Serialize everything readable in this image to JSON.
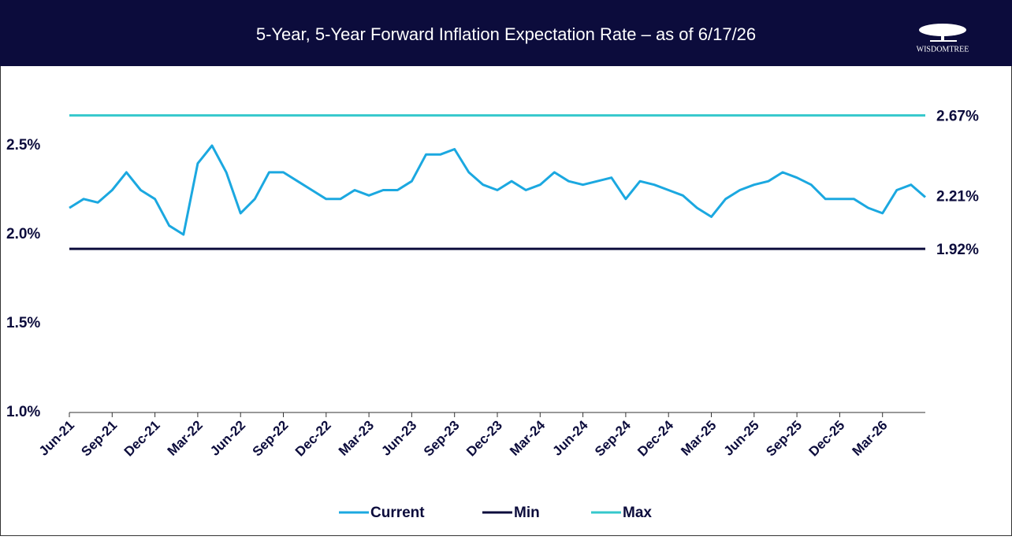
{
  "logo": "WISDOMTREE",
  "chart_data": {
    "type": "line",
    "title": "5-Year, 5-Year Forward Inflation Expectation Rate – as of 6/17/26",
    "x": [
      "Jun-21",
      "Jul-21",
      "Aug-21",
      "Sep-21",
      "Oct-21",
      "Nov-21",
      "Dec-21",
      "Jan-22",
      "Feb-22",
      "Mar-22",
      "Apr-22",
      "May-22",
      "Jun-22",
      "Jul-22",
      "Aug-22",
      "Sep-22",
      "Oct-22",
      "Nov-22",
      "Dec-22",
      "Jan-23",
      "Feb-23",
      "Mar-23",
      "Apr-23",
      "May-23",
      "Jun-23",
      "Jul-23",
      "Aug-23",
      "Sep-23",
      "Oct-23",
      "Nov-23",
      "Dec-23",
      "Jan-24",
      "Feb-24",
      "Mar-24",
      "Apr-24",
      "May-24",
      "Jun-24",
      "Jul-24",
      "Aug-24",
      "Sep-24",
      "Oct-24",
      "Nov-24",
      "Dec-24",
      "Jan-25",
      "Feb-25",
      "Mar-25",
      "Apr-25",
      "May-25",
      "Jun-25",
      "Jul-25",
      "Aug-25",
      "Sep-25",
      "Oct-25",
      "Nov-25",
      "Dec-25",
      "Jan-26",
      "Feb-26",
      "Mar-26",
      "Apr-26",
      "May-26",
      "Jun-26"
    ],
    "xticks": [
      "Jun-21",
      "Sep-21",
      "Dec-21",
      "Mar-22",
      "Jun-22",
      "Sep-22",
      "Dec-22",
      "Mar-23",
      "Jun-23",
      "Sep-23",
      "Dec-23",
      "Mar-24",
      "Jun-24",
      "Sep-24",
      "Dec-24",
      "Mar-25",
      "Jun-25",
      "Sep-25",
      "Dec-25",
      "Mar-26"
    ],
    "ylim": [
      1.0,
      2.75
    ],
    "yticks": [
      {
        "value": 1.0,
        "label": "1.0%"
      },
      {
        "value": 1.5,
        "label": "1.5%"
      },
      {
        "value": 2.0,
        "label": "2.0%"
      },
      {
        "value": 2.5,
        "label": "2.5%"
      }
    ],
    "series": [
      {
        "name": "Current",
        "color": "#1ba8e0",
        "end_label": "2.21%",
        "values": [
          2.15,
          2.2,
          2.18,
          2.25,
          2.35,
          2.25,
          2.2,
          2.05,
          2.0,
          2.4,
          2.5,
          2.35,
          2.12,
          2.2,
          2.35,
          2.35,
          2.3,
          2.25,
          2.2,
          2.2,
          2.25,
          2.22,
          2.25,
          2.25,
          2.3,
          2.45,
          2.45,
          2.48,
          2.35,
          2.28,
          2.25,
          2.3,
          2.25,
          2.28,
          2.35,
          2.3,
          2.28,
          2.3,
          2.32,
          2.2,
          2.3,
          2.28,
          2.25,
          2.22,
          2.15,
          2.1,
          2.2,
          2.25,
          2.28,
          2.3,
          2.35,
          2.32,
          2.28,
          2.2,
          2.2,
          2.2,
          2.15,
          2.12,
          2.25,
          2.28,
          2.21
        ]
      },
      {
        "name": "Min",
        "color": "#0c0c3c",
        "value": 1.92,
        "label": "1.92%"
      },
      {
        "name": "Max",
        "color": "#35c8cc",
        "value": 2.67,
        "label": "2.67%"
      }
    ]
  }
}
